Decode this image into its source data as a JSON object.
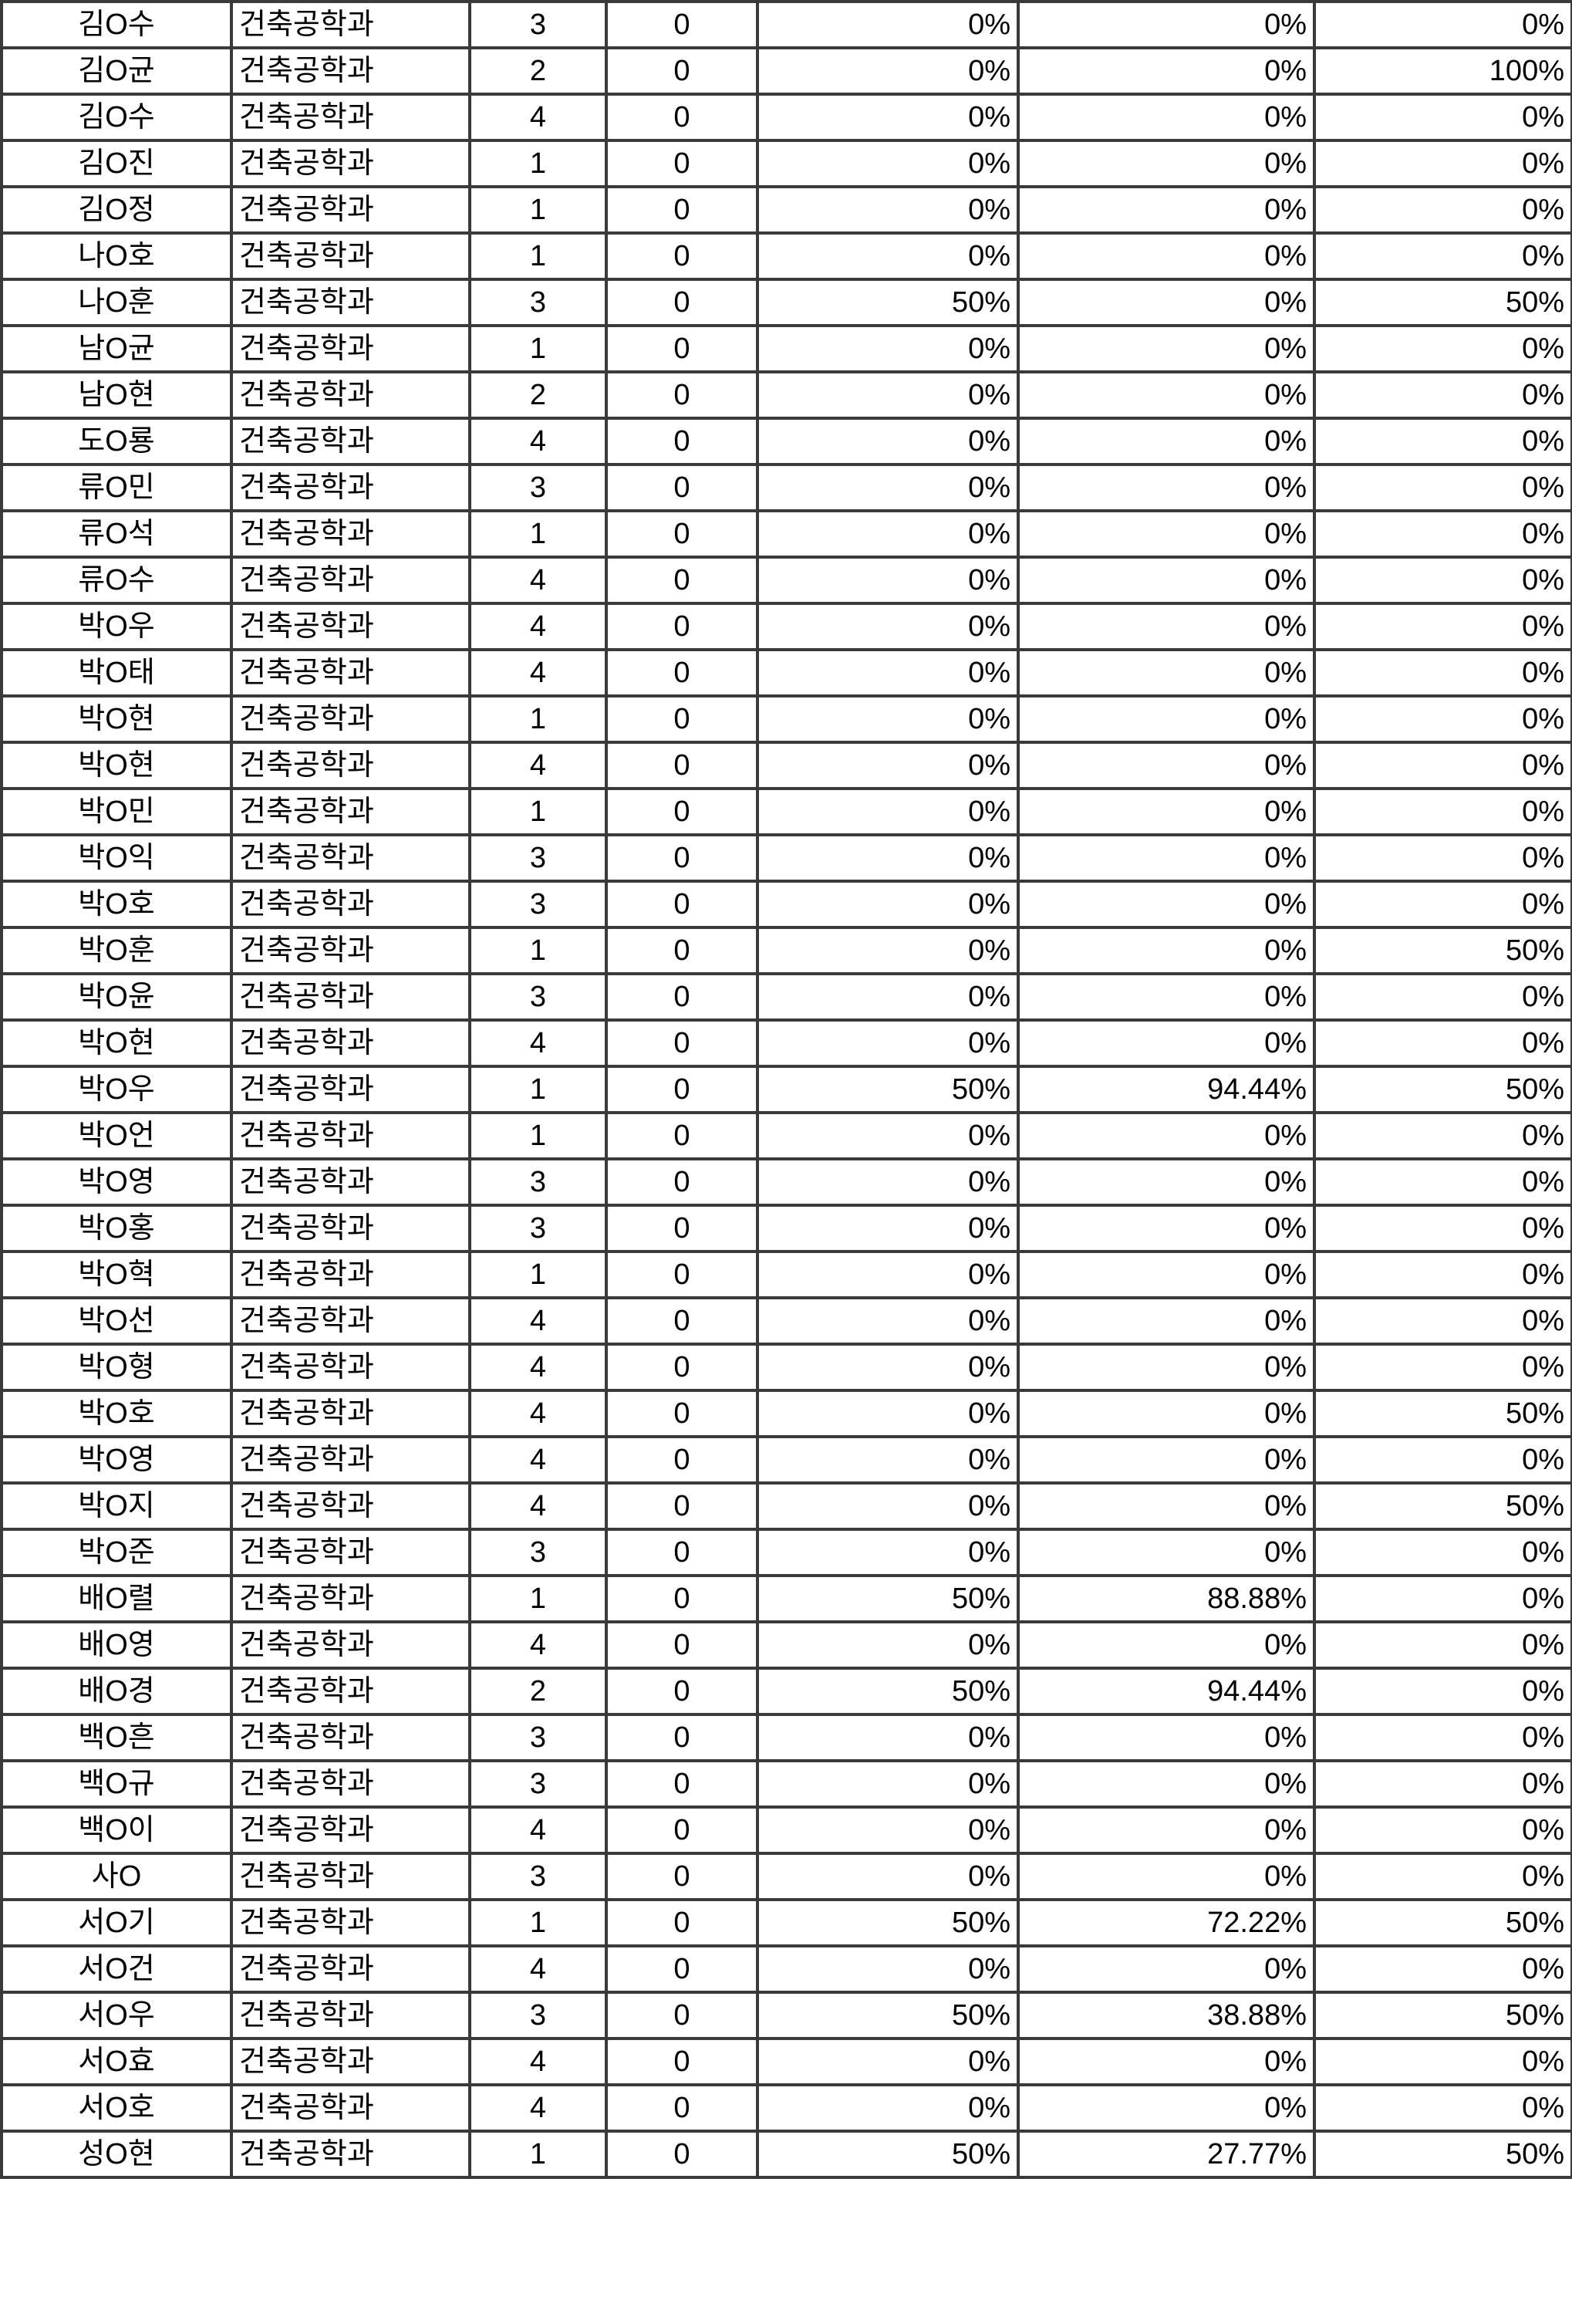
{
  "rows": [
    [
      "김O수",
      "건축공학과",
      "3",
      "0",
      "0%",
      "0%",
      "0%"
    ],
    [
      "김O균",
      "건축공학과",
      "2",
      "0",
      "0%",
      "0%",
      "100%"
    ],
    [
      "김O수",
      "건축공학과",
      "4",
      "0",
      "0%",
      "0%",
      "0%"
    ],
    [
      "김O진",
      "건축공학과",
      "1",
      "0",
      "0%",
      "0%",
      "0%"
    ],
    [
      "김O정",
      "건축공학과",
      "1",
      "0",
      "0%",
      "0%",
      "0%"
    ],
    [
      "나O호",
      "건축공학과",
      "1",
      "0",
      "0%",
      "0%",
      "0%"
    ],
    [
      "나O훈",
      "건축공학과",
      "3",
      "0",
      "50%",
      "0%",
      "50%"
    ],
    [
      "남O균",
      "건축공학과",
      "1",
      "0",
      "0%",
      "0%",
      "0%"
    ],
    [
      "남O현",
      "건축공학과",
      "2",
      "0",
      "0%",
      "0%",
      "0%"
    ],
    [
      "도O룡",
      "건축공학과",
      "4",
      "0",
      "0%",
      "0%",
      "0%"
    ],
    [
      "류O민",
      "건축공학과",
      "3",
      "0",
      "0%",
      "0%",
      "0%"
    ],
    [
      "류O석",
      "건축공학과",
      "1",
      "0",
      "0%",
      "0%",
      "0%"
    ],
    [
      "류O수",
      "건축공학과",
      "4",
      "0",
      "0%",
      "0%",
      "0%"
    ],
    [
      "박O우",
      "건축공학과",
      "4",
      "0",
      "0%",
      "0%",
      "0%"
    ],
    [
      "박O태",
      "건축공학과",
      "4",
      "0",
      "0%",
      "0%",
      "0%"
    ],
    [
      "박O현",
      "건축공학과",
      "1",
      "0",
      "0%",
      "0%",
      "0%"
    ],
    [
      "박O현",
      "건축공학과",
      "4",
      "0",
      "0%",
      "0%",
      "0%"
    ],
    [
      "박O민",
      "건축공학과",
      "1",
      "0",
      "0%",
      "0%",
      "0%"
    ],
    [
      "박O익",
      "건축공학과",
      "3",
      "0",
      "0%",
      "0%",
      "0%"
    ],
    [
      "박O호",
      "건축공학과",
      "3",
      "0",
      "0%",
      "0%",
      "0%"
    ],
    [
      "박O훈",
      "건축공학과",
      "1",
      "0",
      "0%",
      "0%",
      "50%"
    ],
    [
      "박O윤",
      "건축공학과",
      "3",
      "0",
      "0%",
      "0%",
      "0%"
    ],
    [
      "박O현",
      "건축공학과",
      "4",
      "0",
      "0%",
      "0%",
      "0%"
    ],
    [
      "박O우",
      "건축공학과",
      "1",
      "0",
      "50%",
      "94.44%",
      "50%"
    ],
    [
      "박O언",
      "건축공학과",
      "1",
      "0",
      "0%",
      "0%",
      "0%"
    ],
    [
      "박O영",
      "건축공학과",
      "3",
      "0",
      "0%",
      "0%",
      "0%"
    ],
    [
      "박O홍",
      "건축공학과",
      "3",
      "0",
      "0%",
      "0%",
      "0%"
    ],
    [
      "박O혁",
      "건축공학과",
      "1",
      "0",
      "0%",
      "0%",
      "0%"
    ],
    [
      "박O선",
      "건축공학과",
      "4",
      "0",
      "0%",
      "0%",
      "0%"
    ],
    [
      "박O형",
      "건축공학과",
      "4",
      "0",
      "0%",
      "0%",
      "0%"
    ],
    [
      "박O호",
      "건축공학과",
      "4",
      "0",
      "0%",
      "0%",
      "50%"
    ],
    [
      "박O영",
      "건축공학과",
      "4",
      "0",
      "0%",
      "0%",
      "0%"
    ],
    [
      "박O지",
      "건축공학과",
      "4",
      "0",
      "0%",
      "0%",
      "50%"
    ],
    [
      "박O준",
      "건축공학과",
      "3",
      "0",
      "0%",
      "0%",
      "0%"
    ],
    [
      "배O렬",
      "건축공학과",
      "1",
      "0",
      "50%",
      "88.88%",
      "0%"
    ],
    [
      "배O영",
      "건축공학과",
      "4",
      "0",
      "0%",
      "0%",
      "0%"
    ],
    [
      "배O경",
      "건축공학과",
      "2",
      "0",
      "50%",
      "94.44%",
      "0%"
    ],
    [
      "백O흔",
      "건축공학과",
      "3",
      "0",
      "0%",
      "0%",
      "0%"
    ],
    [
      "백O규",
      "건축공학과",
      "3",
      "0",
      "0%",
      "0%",
      "0%"
    ],
    [
      "백O이",
      "건축공학과",
      "4",
      "0",
      "0%",
      "0%",
      "0%"
    ],
    [
      "사O",
      "건축공학과",
      "3",
      "0",
      "0%",
      "0%",
      "0%"
    ],
    [
      "서O기",
      "건축공학과",
      "1",
      "0",
      "50%",
      "72.22%",
      "50%"
    ],
    [
      "서O건",
      "건축공학과",
      "4",
      "0",
      "0%",
      "0%",
      "0%"
    ],
    [
      "서O우",
      "건축공학과",
      "3",
      "0",
      "50%",
      "38.88%",
      "50%"
    ],
    [
      "서O효",
      "건축공학과",
      "4",
      "0",
      "0%",
      "0%",
      "0%"
    ],
    [
      "서O호",
      "건축공학과",
      "4",
      "0",
      "0%",
      "0%",
      "0%"
    ],
    [
      "성O현",
      "건축공학과",
      "1",
      "0",
      "50%",
      "27.77%",
      "50%"
    ]
  ]
}
